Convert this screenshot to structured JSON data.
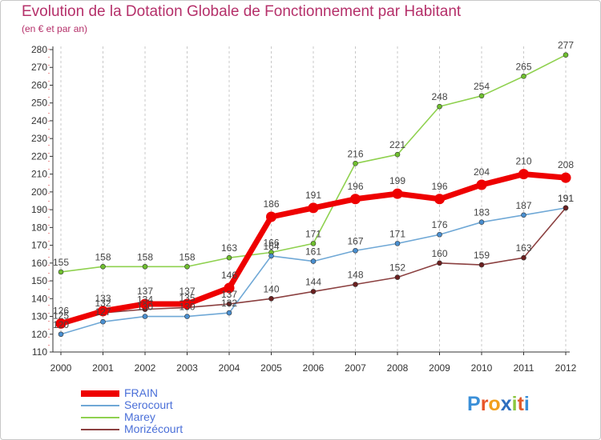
{
  "chart_data": {
    "type": "line",
    "title": "Evolution de la Dotation Globale de Fonctionnement par Habitant",
    "subtitle": "(en € et par an)",
    "xlabel": "",
    "ylabel": "",
    "ylim": [
      110,
      280
    ],
    "yticks": [
      "110",
      "120",
      "130",
      "140",
      "150",
      "160",
      "170",
      "180",
      "190",
      "200",
      "210",
      "220",
      "230",
      "240",
      "250",
      "260",
      "270",
      "280"
    ],
    "categories": [
      "2000",
      "2001",
      "2002",
      "2003",
      "2004",
      "2005",
      "2006",
      "2007",
      "2008",
      "2009",
      "2010",
      "2011",
      "2012"
    ],
    "grid": "vertical dashed",
    "legend_position": "bottom-left",
    "series": [
      {
        "name": "Marey",
        "color": "#8fd14f",
        "marker": "#6fbf2f",
        "emphasis": false,
        "values": [
          155,
          158,
          158,
          158,
          163,
          166,
          171,
          216,
          221,
          248,
          254,
          265,
          277
        ]
      },
      {
        "name": "Serocourt",
        "color": "#6fa8d6",
        "marker": "#4a8fd0",
        "emphasis": false,
        "values": [
          120,
          127,
          130,
          130,
          132,
          164,
          161,
          167,
          171,
          176,
          183,
          187,
          191
        ]
      },
      {
        "name": "Morizécourt",
        "color": "#8b4040",
        "marker": "#6b2020",
        "emphasis": false,
        "values": [
          125,
          132,
          134,
          135,
          137,
          140,
          144,
          148,
          152,
          160,
          159,
          163,
          191
        ]
      },
      {
        "name": "FRAIN",
        "color": "#ee0000",
        "marker": "#ee0000",
        "emphasis": true,
        "values": [
          126,
          133,
          137,
          137,
          146,
          186,
          191,
          196,
          199,
          196,
          204,
          210,
          208
        ]
      }
    ],
    "legend_order": [
      "FRAIN",
      "Serocourt",
      "Marey",
      "Morizécourt"
    ]
  },
  "branding": {
    "logo": "Proxiti"
  }
}
